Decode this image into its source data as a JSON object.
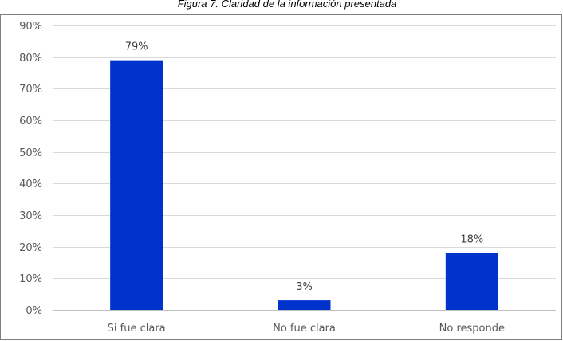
{
  "chart_data": {
    "type": "bar",
    "title": "Figura 7. Claridad de la información presentada",
    "categories": [
      "Si fue clara",
      "No fue clara",
      "No responde"
    ],
    "values": [
      79,
      3,
      18
    ],
    "data_labels": [
      "79%",
      "3%",
      "18%"
    ],
    "ylim": [
      0,
      90
    ],
    "y_ticks": [
      {
        "value": 0,
        "label": "0%"
      },
      {
        "value": 10,
        "label": "10%"
      },
      {
        "value": 20,
        "label": "20%"
      },
      {
        "value": 30,
        "label": "30%"
      },
      {
        "value": 40,
        "label": "40%"
      },
      {
        "value": 50,
        "label": "50%"
      },
      {
        "value": 60,
        "label": "60%"
      },
      {
        "value": 70,
        "label": "70%"
      },
      {
        "value": 80,
        "label": "80%"
      },
      {
        "value": 90,
        "label": "90%"
      }
    ],
    "xlabel": "",
    "ylabel": "",
    "grid": true,
    "colors": {
      "bar": "#0033CC",
      "grid": "#D9D9D9",
      "axis": "#BFBFBF",
      "frame": "#7F7F7F"
    }
  }
}
